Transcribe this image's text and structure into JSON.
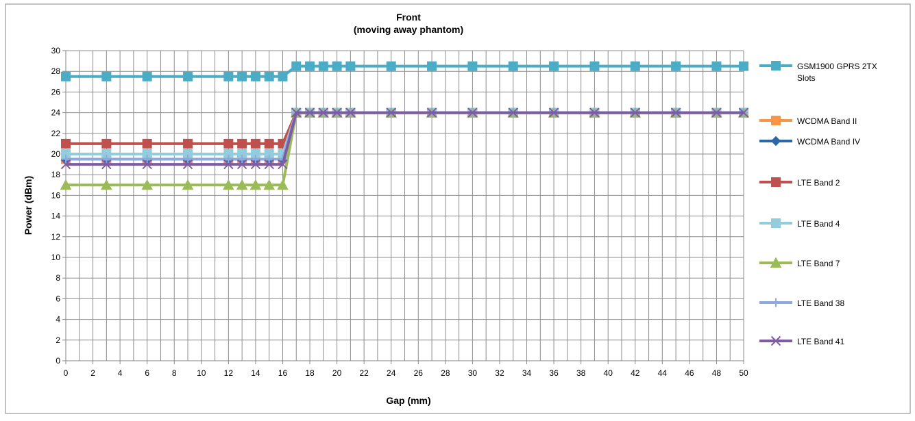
{
  "chart_data": {
    "type": "line",
    "title": "Front",
    "subtitle": "(moving away phantom)",
    "xlabel": "Gap (mm)",
    "ylabel": "Power (dBm)",
    "x": [
      0,
      3,
      6,
      9,
      12,
      13,
      14,
      15,
      16,
      17,
      18,
      19,
      20,
      21,
      24,
      27,
      30,
      33,
      36,
      39,
      42,
      45,
      48,
      50
    ],
    "x_tick_labels": [
      "0",
      "2",
      "4",
      "6",
      "8",
      "10",
      "12",
      "14",
      "16",
      "18",
      "20",
      "22",
      "24",
      "26",
      "28",
      "30",
      "32",
      "34",
      "36",
      "38",
      "40",
      "42",
      "44",
      "46",
      "48",
      "50"
    ],
    "y_tick_labels": [
      "0",
      "2",
      "4",
      "6",
      "8",
      "10",
      "12",
      "14",
      "16",
      "18",
      "20",
      "22",
      "24",
      "26",
      "28",
      "30"
    ],
    "ylim": [
      0,
      30
    ],
    "xlim": [
      0,
      50
    ],
    "grid": true,
    "legend_position": "right",
    "series": [
      {
        "name": "GSM1900 GPRS 2TX Slots",
        "color": "#4BACC6",
        "marker": "square",
        "values": [
          27.5,
          27.5,
          27.5,
          27.5,
          27.5,
          27.5,
          27.5,
          27.5,
          27.5,
          28.5,
          28.5,
          28.5,
          28.5,
          28.5,
          28.5,
          28.5,
          28.5,
          28.5,
          28.5,
          28.5,
          28.5,
          28.5,
          28.5,
          28.5
        ]
      },
      {
        "name": "WCDMA Band II",
        "color": "#F79646",
        "marker": "square",
        "values": [
          19.5,
          19.5,
          19.5,
          19.5,
          19.5,
          19.5,
          19.5,
          19.5,
          19.5,
          24,
          24,
          24,
          24,
          24,
          24,
          24,
          24,
          24,
          24,
          24,
          24,
          24,
          24,
          24
        ]
      },
      {
        "name": "WCDMA Band IV",
        "color": "#2C68A8",
        "marker": "diamond",
        "values": [
          19.5,
          19.5,
          19.5,
          19.5,
          19.5,
          19.5,
          19.5,
          19.5,
          19.5,
          24,
          24,
          24,
          24,
          24,
          24,
          24,
          24,
          24,
          24,
          24,
          24,
          24,
          24,
          24
        ]
      },
      {
        "name": "LTE Band 2",
        "color": "#C0504D",
        "marker": "square",
        "values": [
          21,
          21,
          21,
          21,
          21,
          21,
          21,
          21,
          21,
          24,
          24,
          24,
          24,
          24,
          24,
          24,
          24,
          24,
          24,
          24,
          24,
          24,
          24,
          24
        ]
      },
      {
        "name": "LTE Band 4",
        "color": "#93CDDD",
        "marker": "square",
        "values": [
          20,
          20,
          20,
          20,
          20,
          20,
          20,
          20,
          20,
          24,
          24,
          24,
          24,
          24,
          24,
          24,
          24,
          24,
          24,
          24,
          24,
          24,
          24,
          24
        ]
      },
      {
        "name": "LTE Band 7",
        "color": "#9BBB59",
        "marker": "triangle",
        "values": [
          17,
          17,
          17,
          17,
          17,
          17,
          17,
          17,
          17,
          24,
          24,
          24,
          24,
          24,
          24,
          24,
          24,
          24,
          24,
          24,
          24,
          24,
          24,
          24
        ]
      },
      {
        "name": "LTE Band 38",
        "color": "#8EA9DB",
        "marker": "plus",
        "values": [
          19.5,
          19.5,
          19.5,
          19.5,
          19.5,
          19.5,
          19.5,
          19.5,
          19.5,
          24,
          24,
          24,
          24,
          24,
          24,
          24,
          24,
          24,
          24,
          24,
          24,
          24,
          24,
          24
        ]
      },
      {
        "name": "LTE Band 41",
        "color": "#7F5BA6",
        "marker": "x",
        "values": [
          19,
          19,
          19,
          19,
          19,
          19,
          19,
          19,
          19,
          24,
          24,
          24,
          24,
          24,
          24,
          24,
          24,
          24,
          24,
          24,
          24,
          24,
          24,
          24
        ]
      }
    ]
  }
}
